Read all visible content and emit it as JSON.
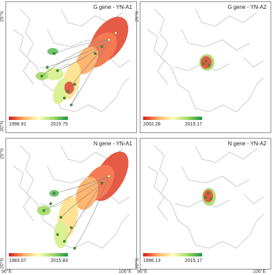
{
  "panels": [
    {
      "id": "tl",
      "title": "G gene - YN-A1",
      "legend_start": "1996.91",
      "legend_end": "2015.75"
    },
    {
      "id": "tr",
      "title": "G gene - YN-A2",
      "legend_start": "2002.28",
      "legend_end": "2015.17"
    },
    {
      "id": "bl",
      "title": "N gene - YN-A1",
      "legend_start": "1983.07",
      "legend_end": "2015.83"
    },
    {
      "id": "br",
      "title": "N gene - YN-A2",
      "legend_start": "1996.13",
      "legend_end": "2015.17"
    }
  ],
  "axes": {
    "lat_top_row": "29°N",
    "lat_bottom_row": "20°N",
    "lat_top_row_2": "29°N",
    "lat_bottom_row_2": "20°N",
    "lon_left": "96°E",
    "lon_right": "106°E",
    "lon_left_2": "96°E",
    "lon_right_2": "106°E"
  },
  "colors": {
    "early": "#d7191c",
    "mid": "#ffffbf",
    "late": "#1a9641",
    "border": "#b5b5b5"
  }
}
